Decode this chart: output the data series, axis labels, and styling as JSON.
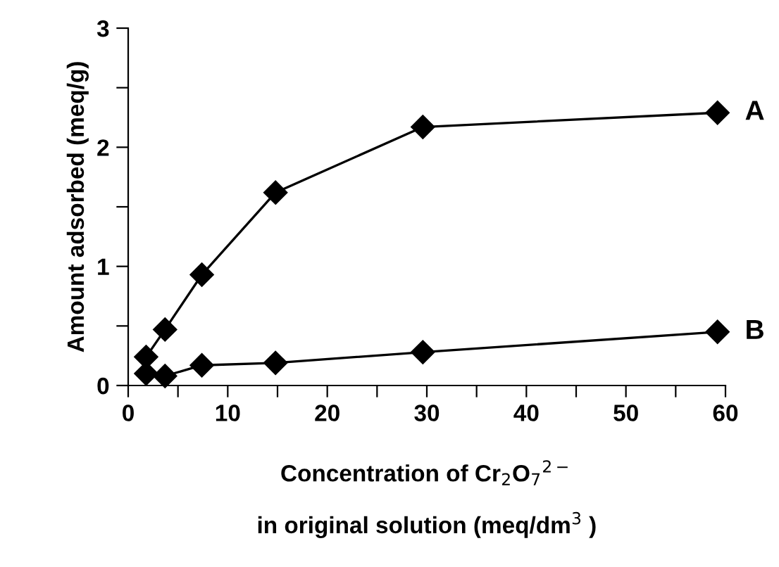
{
  "chart_data": {
    "type": "line",
    "xlabel": "Concentration of Cr$_{2}$O$_{7}$$^{2−}$\nin original solution (meq/dm$^{3}$ )",
    "ylabel": "Amount adsorbed (meq/g)",
    "series": [
      {
        "name": "A",
        "color": "#000000",
        "x": [
          1.8,
          3.7,
          7.4,
          14.8,
          29.6,
          59.2
        ],
        "values": [
          0.24,
          0.47,
          0.93,
          1.62,
          2.17,
          2.29
        ]
      },
      {
        "name": "B",
        "color": "#000000",
        "x": [
          1.8,
          3.7,
          7.4,
          14.8,
          29.6,
          59.2
        ],
        "values": [
          0.1,
          0.08,
          0.17,
          0.19,
          0.28,
          0.45
        ]
      }
    ],
    "xlim": [
      0,
      60
    ],
    "ylim": [
      0,
      3
    ],
    "xticks": [
      0,
      {
        "value": 5,
        "label": null
      },
      10,
      {
        "value": 15,
        "label": null
      },
      20,
      {
        "value": 25,
        "label": null
      },
      30,
      {
        "value": 35,
        "label": null
      },
      40,
      {
        "value": 45,
        "label": null
      },
      50,
      {
        "value": 55,
        "label": null
      },
      60
    ],
    "yticks": [
      0,
      {
        "value": 0.5,
        "label": null
      },
      1,
      {
        "value": 1.5,
        "label": null
      },
      2,
      {
        "value": 2.5,
        "label": null
      },
      3
    ],
    "marker": "diamond",
    "line_style": "solid",
    "grid": false,
    "legend": false
  }
}
